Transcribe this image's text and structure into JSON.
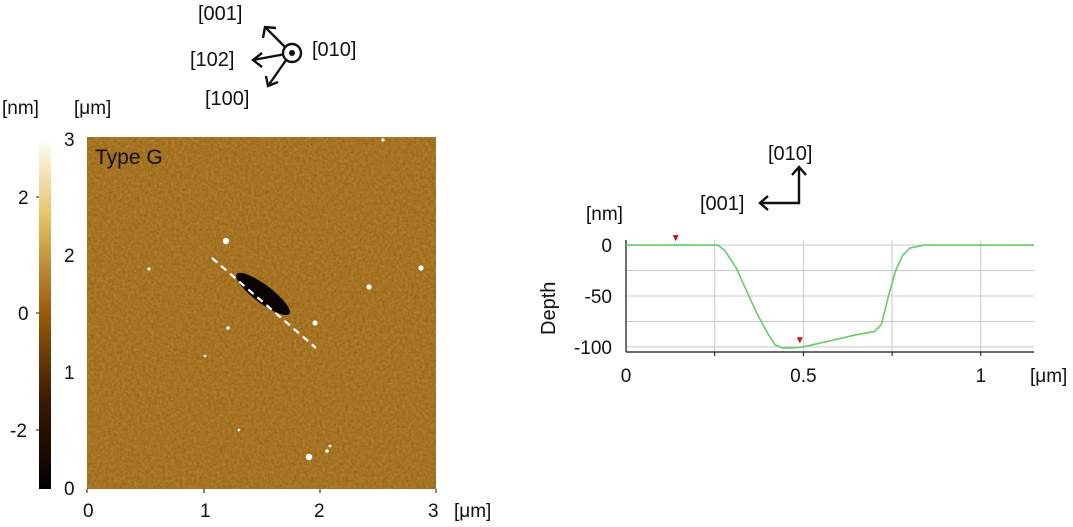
{
  "crystal_axes_top": {
    "up": "[001]",
    "left": "[102]",
    "down_left": "[100]",
    "out_of_plane": "[010]"
  },
  "afm_image": {
    "label": "Type G",
    "x_unit": "[μm]",
    "y_unit": "[μm]",
    "x_ticks": [
      "0",
      "1",
      "2",
      "3"
    ],
    "y_ticks": [
      "0",
      "1",
      "2",
      "3"
    ],
    "colorbar_unit": "[nm]",
    "colorbar_ticks": [
      "2",
      "0",
      "-2"
    ],
    "colors": {
      "dark": "#000000",
      "mid": "#9a5a0c",
      "light": "#e6c46a",
      "top": "#ffffff"
    }
  },
  "crystal_axes_profile": {
    "up": "[010]",
    "left": "[001]"
  },
  "chart_data": {
    "type": "line",
    "title": "",
    "xlabel": "[μm]",
    "ylabel": "Depth",
    "y_unit": "[nm]",
    "xlim": [
      0,
      1.15
    ],
    "ylim": [
      -105,
      5
    ],
    "x_ticks": [
      "0",
      "0.5",
      "1"
    ],
    "y_ticks": [
      "0",
      "-50",
      "-100"
    ],
    "grid": true,
    "series": [
      {
        "color": "#66cc66",
        "x": [
          0,
          0.1,
          0.2,
          0.26,
          0.28,
          0.31,
          0.34,
          0.37,
          0.4,
          0.42,
          0.44,
          0.47,
          0.5,
          0.55,
          0.6,
          0.65,
          0.7,
          0.72,
          0.74,
          0.76,
          0.78,
          0.8,
          0.84,
          0.9,
          1.0,
          1.1,
          1.15
        ],
        "y": [
          0,
          0,
          0,
          0,
          -6,
          -22,
          -45,
          -68,
          -87,
          -98,
          -101,
          -101,
          -100,
          -96,
          -92,
          -88,
          -85,
          -78,
          -50,
          -25,
          -10,
          -3,
          0,
          0,
          0,
          0,
          0
        ]
      }
    ],
    "markers": [
      {
        "x": 0.14,
        "color": "#cc1111"
      },
      {
        "x": 0.49,
        "color": "#cc1111"
      }
    ]
  }
}
